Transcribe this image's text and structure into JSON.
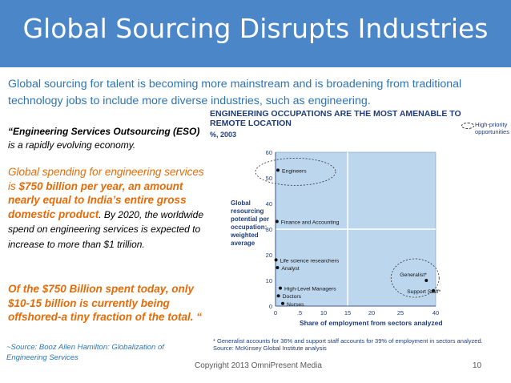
{
  "slide": {
    "title": "Global Sourcing Disrupts Industries",
    "intro": "Global sourcing for talent is becoming more mainstream and is broadening from traditional technology jobs to include more diverse industries, such as engineering.",
    "eso_bold": "“Engineering Services Outsourcing (ESO)",
    "eso_rest": "is a rapidly evolving economy.",
    "spend_part1": "Global spending for engineering services is ",
    "spend_part2": "$750 billion per year, an amount nearly equal to India’s entire gross domestic product",
    "spend_part3": ". By 2020, the worldwide spend on engineering services is expected to increase to more than $1 trillion.",
    "offshore": "Of the $750 Billion spent today, only $10-15 billion is currently being offshored-a tiny fraction of the total. “",
    "source": "~Source: Booz Allen Hamilton: Globalization of Engineering Services",
    "copyright": "Copyright 2013 OmniPresent Media",
    "page_number": "10",
    "colors": {
      "title_bar": "#4a86c8",
      "intro_text": "#2e74b5",
      "highlight": "#e36c09",
      "chart_fill": "#bcd6ee"
    }
  },
  "exhibit": {
    "title": "ENGINEERING OCCUPATIONS ARE THE MOST AMENABLE TO REMOTE LOCATION",
    "subtitle": "%, 2003",
    "legend_label": "High-priority opportunities",
    "y_label": "Global resourcing potential per occupation; weighted average",
    "x_label": "Share of employment from sectors analyzed",
    "footnote": "* Generalist accounts for 36% and support staff accounts for 39% of employment in sectors analyzed.",
    "source": "Source: McKinsey Global Institute analysis"
  },
  "chart_data": {
    "type": "scatter",
    "x_ticks": [
      "0",
      ".5",
      "10",
      "15",
      "20",
      "25",
      "40"
    ],
    "y_ticks": [
      "0",
      "10",
      "20",
      "30",
      "40",
      "50",
      "60"
    ],
    "ylim": [
      0,
      60
    ],
    "points": [
      {
        "label": "Engineers",
        "x": 0.5,
        "y": 53,
        "high_priority": true
      },
      {
        "label": "Finance and Accounting",
        "x": 0.3,
        "y": 33,
        "high_priority": false
      },
      {
        "label": "Life science researchers",
        "x": 0.1,
        "y": 18,
        "high_priority": false
      },
      {
        "label": "Analyst",
        "x": 0.4,
        "y": 15,
        "high_priority": false
      },
      {
        "label": "High-Level Managers",
        "x": 1,
        "y": 7,
        "high_priority": false
      },
      {
        "label": "Doctors",
        "x": 0.6,
        "y": 4,
        "high_priority": false
      },
      {
        "label": "Nurses",
        "x": 1.5,
        "y": 1,
        "high_priority": false
      },
      {
        "label": "Generalist*",
        "x": 36,
        "y": 10,
        "high_priority": true
      },
      {
        "label": "Support Staff*",
        "x": 39,
        "y": 6,
        "high_priority": true
      }
    ]
  }
}
